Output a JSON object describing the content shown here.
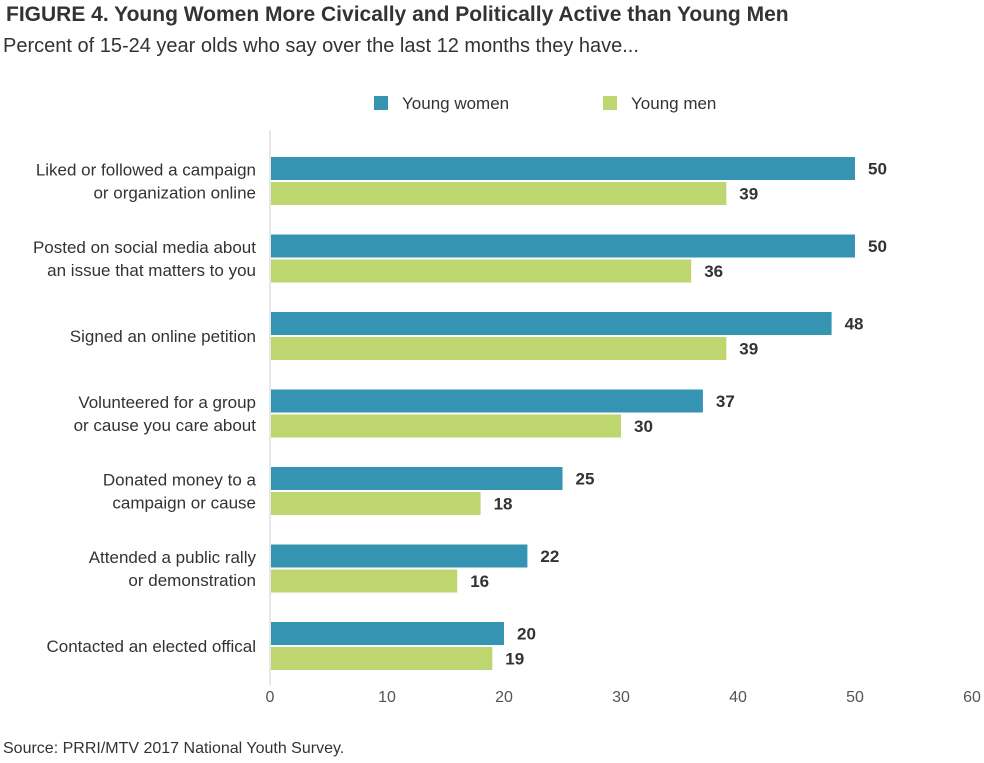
{
  "header": {
    "title": "FIGURE 4. Young Women More Civically and Politically Active than Young Men",
    "subtitle": "Percent of 15-24 year olds who say over the last 12 months they have..."
  },
  "footer": {
    "source": "Source: PRRI/MTV 2017 National Youth Survey."
  },
  "chart_data": {
    "type": "bar",
    "orientation": "horizontal",
    "categories": [
      [
        "Liked or followed a campaign",
        "or organization online"
      ],
      [
        "Posted on social media about",
        "an issue that matters to you"
      ],
      [
        "Signed an online petition"
      ],
      [
        "Volunteered for a group",
        "or cause you care about"
      ],
      [
        "Donated money to a",
        "campaign or cause"
      ],
      [
        "Attended a public rally",
        "or demonstration"
      ],
      [
        "Contacted an elected offical"
      ]
    ],
    "series": [
      {
        "name": "Young women",
        "color": "#3494b1",
        "values": [
          50,
          50,
          48,
          37,
          25,
          22,
          20
        ]
      },
      {
        "name": "Young men",
        "color": "#bdd66f",
        "values": [
          39,
          36,
          39,
          30,
          18,
          16,
          19
        ]
      }
    ],
    "xlim": [
      0,
      60
    ],
    "xticks": [
      0,
      10,
      20,
      30,
      40,
      50,
      60
    ],
    "grid": false,
    "legend_position": "top"
  }
}
